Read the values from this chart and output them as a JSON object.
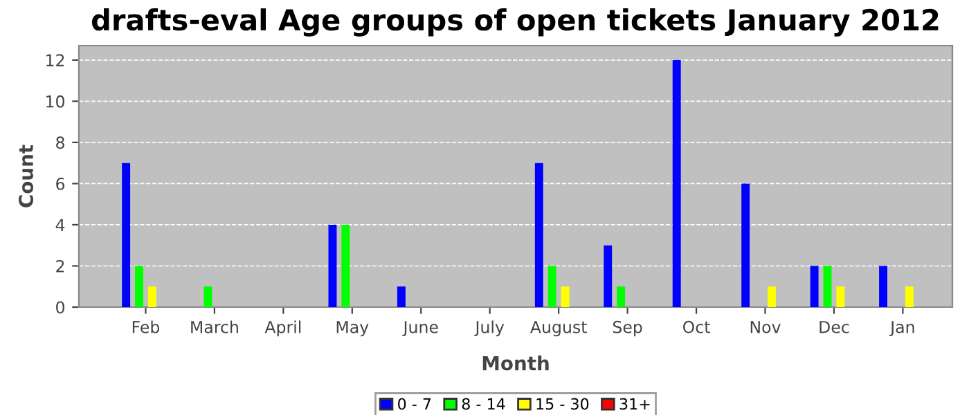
{
  "chart_data": {
    "type": "bar",
    "title": "drafts-eval Age groups of open tickets January 2012",
    "xlabel": "Month",
    "ylabel": "Count",
    "categories": [
      "Feb",
      "March",
      "April",
      "May",
      "June",
      "July",
      "August",
      "Sep",
      "Oct",
      "Nov",
      "Dec",
      "Jan"
    ],
    "series": [
      {
        "name": "0 - 7",
        "color": "#0000ff",
        "values": [
          7,
          0,
          0,
          4,
          1,
          0,
          7,
          3,
          12,
          6,
          2,
          2
        ]
      },
      {
        "name": "8 - 14",
        "color": "#00ff00",
        "values": [
          2,
          1,
          0,
          4,
          0,
          0,
          2,
          1,
          0,
          0,
          2,
          0
        ]
      },
      {
        "name": "15 - 30",
        "color": "#ffff00",
        "values": [
          1,
          0,
          0,
          0,
          0,
          0,
          1,
          0,
          0,
          1,
          1,
          1
        ]
      },
      {
        "name": "31+",
        "color": "#ff0000",
        "values": [
          0,
          0,
          0,
          0,
          0,
          0,
          0,
          0,
          0,
          0,
          0,
          0
        ]
      }
    ],
    "ylim": [
      0,
      12.7
    ],
    "yticks": [
      0,
      2,
      4,
      6,
      8,
      10,
      12
    ],
    "grid": "y",
    "legend": "bottom"
  }
}
